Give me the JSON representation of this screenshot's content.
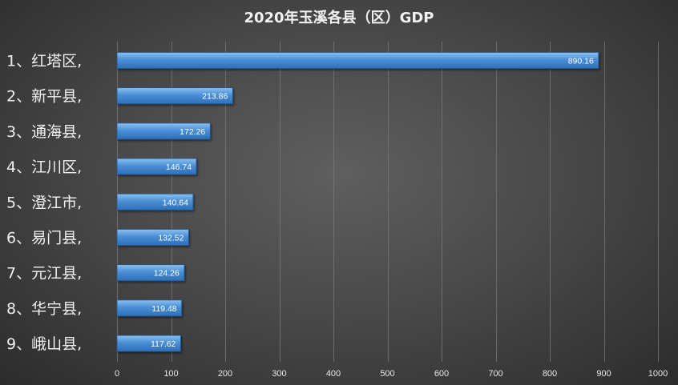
{
  "chart_data": {
    "type": "bar",
    "orientation": "horizontal",
    "title": "2020年玉溪各县（区）GDP",
    "categories": [
      "1、红塔区,",
      "2、新平县,",
      "3、通海县,",
      "4、江川区,",
      "5、澄江市,",
      "6、易门县,",
      "7、元江县,",
      "8、华宁县,",
      "9、峨山县,"
    ],
    "values": [
      890.16,
      213.86,
      172.26,
      146.74,
      140.64,
      132.52,
      124.26,
      119.48,
      117.62
    ],
    "value_labels": [
      "890.16",
      "213.86",
      "172.26",
      "146.74",
      "140.64",
      "132.52",
      "124.26",
      "119.48",
      "117.62"
    ],
    "xlim": [
      0,
      1000
    ],
    "xticks": [
      0,
      100,
      200,
      300,
      400,
      500,
      600,
      700,
      800,
      900,
      1000
    ],
    "xtick_labels": [
      "0",
      "100",
      "200",
      "300",
      "400",
      "500",
      "600",
      "700",
      "800",
      "900",
      "1000"
    ],
    "xlabel": "",
    "ylabel": "",
    "grid": "vertical",
    "legend": "none",
    "colors": {
      "bar_top": "#8cc0f0",
      "bar_mid": "#4a8fd6",
      "bar_bottom": "#2f6fb5",
      "bar_edge": "#1f5a9a",
      "background_center": "#5f5f5f",
      "background_edge": "#2c2c2c",
      "gridline": "#7a7a7a",
      "text": "#f0f0f0"
    }
  }
}
